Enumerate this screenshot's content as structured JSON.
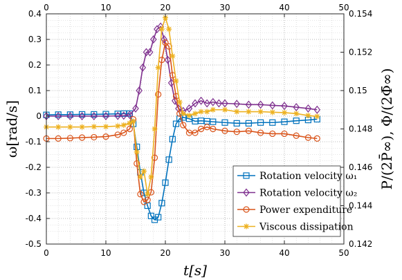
{
  "chart_data": {
    "type": "line",
    "xlabel": "t[s]",
    "ylabel_left": "ω[rad/s]",
    "ylabel_right": "P/(2P̄∞), Φ/(2Φ̄∞)",
    "xlim": [
      0,
      50
    ],
    "ylim_left": [
      -0.5,
      0.4
    ],
    "ylim_right": [
      0.142,
      0.154
    ],
    "x_ticks": [
      "0",
      "10",
      "20",
      "30",
      "40",
      "50"
    ],
    "y_left_ticks": [
      "-0.5",
      "-0.4",
      "-0.3",
      "-0.2",
      "-0.1",
      "0",
      "0.1",
      "0.2",
      "0.3",
      "0.4"
    ],
    "y_right_ticks": [
      "0.142",
      "0.144",
      "0.146",
      "0.148",
      "0.15",
      "0.152",
      "0.154"
    ],
    "grid": true,
    "legend_position": "bottom-right",
    "series": [
      {
        "name": "Rotation velocity ω₁",
        "axis": "left",
        "color": "#0072BD",
        "marker": "square",
        "x": [
          0,
          2,
          4,
          6,
          8,
          10,
          12,
          13,
          14,
          14.6,
          15.2,
          15.8,
          16.4,
          17,
          17.6,
          18.2,
          18.8,
          19.4,
          20,
          20.6,
          21.2,
          21.8,
          22.4,
          23,
          24,
          25,
          26,
          27,
          28,
          30,
          32,
          34,
          36,
          38,
          40,
          42,
          44,
          45.5
        ],
        "values": [
          0.005,
          0.006,
          0.006,
          0.007,
          0.007,
          0.008,
          0.009,
          0.01,
          0.01,
          -0.03,
          -0.12,
          -0.22,
          -0.3,
          -0.35,
          -0.39,
          -0.405,
          -0.395,
          -0.34,
          -0.26,
          -0.17,
          -0.09,
          -0.03,
          -0.01,
          -0.005,
          -0.01,
          -0.02,
          -0.018,
          -0.02,
          -0.022,
          -0.025,
          -0.028,
          -0.028,
          -0.025,
          -0.025,
          -0.022,
          -0.018,
          -0.015,
          -0.012
        ]
      },
      {
        "name": "Rotation velocity ω₂",
        "axis": "left",
        "color": "#7E2F8E",
        "marker": "diamond",
        "x": [
          0,
          2,
          4,
          6,
          8,
          10,
          12,
          13,
          14,
          15,
          15.6,
          16.2,
          16.8,
          17.4,
          18,
          18.6,
          19.2,
          19.8,
          20.4,
          21,
          21.6,
          22.2,
          23,
          24,
          25,
          26,
          27,
          28,
          29,
          30,
          32,
          34,
          36,
          38,
          40,
          42,
          44,
          45.5
        ],
        "values": [
          0.0,
          0.0,
          0.0,
          0.0,
          0.0,
          0.0,
          0.001,
          0.002,
          0.005,
          0.03,
          0.1,
          0.19,
          0.25,
          0.25,
          0.3,
          0.34,
          0.35,
          0.3,
          0.22,
          0.13,
          0.06,
          0.03,
          0.02,
          0.03,
          0.05,
          0.06,
          0.05,
          0.055,
          0.05,
          0.05,
          0.048,
          0.045,
          0.045,
          0.042,
          0.04,
          0.035,
          0.03,
          0.025
        ]
      },
      {
        "name": "Power expenditure",
        "axis": "right",
        "color": "#D95319",
        "marker": "circle",
        "x": [
          0,
          2,
          4,
          6,
          8,
          10,
          12,
          13,
          14,
          14.6,
          15.2,
          15.8,
          16.4,
          17,
          17.6,
          18.2,
          18.8,
          19.4,
          20,
          20.6,
          21.2,
          21.8,
          22.4,
          23,
          24,
          25,
          26,
          27,
          28,
          30,
          32,
          34,
          36,
          38,
          40,
          42,
          44,
          45.5
        ],
        "values": [
          0.1475,
          0.1475,
          0.14752,
          0.14755,
          0.14757,
          0.1476,
          0.1477,
          0.1478,
          0.148,
          0.1485,
          0.1462,
          0.1446,
          0.1442,
          0.1443,
          0.1447,
          0.1465,
          0.1498,
          0.1516,
          0.1525,
          0.1523,
          0.1508,
          0.1497,
          0.1488,
          0.1482,
          0.1478,
          0.1478,
          0.148,
          0.1481,
          0.148,
          0.1479,
          0.14785,
          0.1479,
          0.1478,
          0.14775,
          0.14775,
          0.14765,
          0.14755,
          0.1475
        ]
      },
      {
        "name": "Viscous dissipation",
        "axis": "right",
        "color": "#EDB120",
        "marker": "asterisk",
        "x": [
          0,
          2,
          4,
          6,
          8,
          10,
          12,
          13,
          14,
          14.6,
          15.2,
          15.8,
          16.4,
          17,
          17.6,
          18.2,
          18.8,
          19.4,
          20,
          20.6,
          21.2,
          21.8,
          22.4,
          23,
          24,
          25,
          26,
          27,
          28,
          30,
          32,
          34,
          36,
          38,
          40,
          42,
          44,
          45.5
        ],
        "values": [
          0.1481,
          0.1481,
          0.1481,
          0.1481,
          0.14812,
          0.14812,
          0.14815,
          0.1482,
          0.1483,
          0.1484,
          0.1468,
          0.1455,
          0.1458,
          0.1446,
          0.1455,
          0.148,
          0.1512,
          0.1532,
          0.1538,
          0.1532,
          0.1518,
          0.1505,
          0.1494,
          0.1488,
          0.1487,
          0.1488,
          0.1489,
          0.1489,
          0.149,
          0.149,
          0.1489,
          0.1489,
          0.1489,
          0.14887,
          0.14885,
          0.1488,
          0.1487,
          0.14865
        ]
      }
    ]
  }
}
